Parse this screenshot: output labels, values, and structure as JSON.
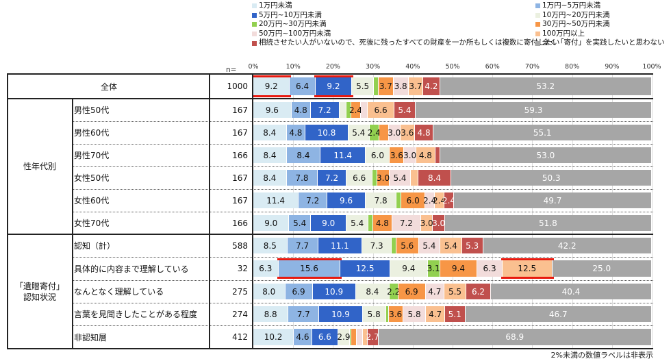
{
  "legend": [
    {
      "label": "1万円未満",
      "color": "#d9ebf3"
    },
    {
      "label": "1万円~5万円未満",
      "color": "#8eb4e3"
    },
    {
      "label": "5万円~10万円未満",
      "color": "#3164c8"
    },
    {
      "label": "10万円~20万円未満",
      "color": "#ebf0e0"
    },
    {
      "label": "20万円~30万円未満",
      "color": "#92d050"
    },
    {
      "label": "30万円~50万円未満",
      "color": "#f79646"
    },
    {
      "label": "50万円~100万円未満",
      "color": "#f2dcdb"
    },
    {
      "label": "100万円以上",
      "color": "#fac090"
    },
    {
      "label": "相続させたい人がいないので、死後に残ったすべての財産を一か所もしくは複数に寄付したい",
      "color": "#c0504d"
    },
    {
      "label": "全く「寄付」を実践したいと思わない",
      "color": "#a6a6a6"
    }
  ],
  "n_header": "n=",
  "footnote": "2%未満の数値ラベルは非表示",
  "chart_data": {
    "type": "bar",
    "orientation": "horizontal",
    "stacked": "100%",
    "title": "",
    "xlabel": "",
    "ylabel": "",
    "xlim": [
      0,
      100
    ],
    "x_ticks": [
      "0%",
      "10%",
      "20%",
      "30%",
      "40%",
      "50%",
      "60%",
      "70%",
      "80%",
      "90%",
      "100%"
    ],
    "grid": true,
    "legend_position": "top",
    "label_threshold_note": "2%未満の数値ラベルは非表示",
    "series_names": [
      "1万円未満",
      "1万円~5万円未満",
      "5万円~10万円未満",
      "10万円~20万円未満",
      "20万円~30万円未満",
      "30万円~50万円未満",
      "50万円~100万円未満",
      "100万円以上",
      "相続させたい人がいないので、死後に残ったすべての財産を一か所もしくは複数に寄付したい",
      "全く「寄付」を実践したいと思わない"
    ],
    "rows": [
      {
        "group": "",
        "label": "全体",
        "n": "1000",
        "values": [
          9.2,
          6.4,
          9.2,
          5.5,
          1.2,
          3.7,
          3.8,
          3.7,
          4.2,
          53.2
        ],
        "labels": [
          "9.2",
          "6.4",
          "9.2",
          "5.5",
          "",
          "3.7",
          "3.8",
          "3.7",
          "4.2",
          "53.2"
        ],
        "highlight": [
          0,
          2
        ]
      },
      {
        "group": "性年代別",
        "label": "男性50代",
        "n": "167",
        "values": [
          9.6,
          4.8,
          7.2,
          1.8,
          1.2,
          2.4,
          1.8,
          6.6,
          5.4,
          59.3
        ],
        "labels": [
          "9.6",
          "4.8",
          "7.2",
          "",
          "",
          "2.4",
          "",
          "6.6",
          "5.4",
          "59.3"
        ],
        "highlight": []
      },
      {
        "group": "性年代別",
        "label": "男性60代",
        "n": "167",
        "values": [
          8.4,
          4.8,
          10.8,
          5.4,
          2.4,
          2.4,
          3.0,
          3.6,
          4.8,
          55.1
        ],
        "labels": [
          "8.4",
          "4.8",
          "10.8",
          "5.4",
          "2.4",
          "",
          "3.0",
          "3.6",
          "4.8",
          "55.1"
        ],
        "highlight": []
      },
      {
        "group": "性年代別",
        "label": "男性70代",
        "n": "166",
        "values": [
          8.4,
          8.4,
          11.4,
          6.0,
          0.0,
          3.6,
          3.0,
          4.8,
          1.2,
          53.0
        ],
        "labels": [
          "8.4",
          "8.4",
          "11.4",
          "6.0",
          "",
          "3.6",
          "3.0",
          "4.8",
          "",
          "53.0"
        ],
        "highlight": []
      },
      {
        "group": "性年代別",
        "label": "女性50代",
        "n": "167",
        "values": [
          8.4,
          7.8,
          7.2,
          6.6,
          1.2,
          3.0,
          5.4,
          1.8,
          8.4,
          50.3
        ],
        "labels": [
          "8.4",
          "7.8",
          "7.2",
          "6.6",
          "",
          "3.0",
          "5.4",
          "",
          "8.4",
          "50.3"
        ],
        "highlight": []
      },
      {
        "group": "性年代別",
        "label": "女性60代",
        "n": "167",
        "values": [
          11.4,
          7.2,
          9.6,
          7.8,
          1.2,
          6.0,
          2.4,
          2.4,
          2.4,
          49.7
        ],
        "labels": [
          "11.4",
          "7.2",
          "9.6",
          "7.8",
          "",
          "6.0",
          "2.4",
          "2.4",
          "2.4",
          "49.7"
        ],
        "highlight": []
      },
      {
        "group": "性年代別",
        "label": "女性70代",
        "n": "166",
        "values": [
          9.0,
          5.4,
          9.0,
          5.4,
          1.2,
          4.8,
          7.2,
          3.0,
          3.0,
          51.8
        ],
        "labels": [
          "9.0",
          "5.4",
          "9.0",
          "5.4",
          "",
          "4.8",
          "7.2",
          "3.0",
          "3.0",
          "51.8"
        ],
        "highlight": []
      },
      {
        "group": "「遺贈寄付」認知状況",
        "label": "認知（計）",
        "n": "588",
        "values": [
          8.5,
          7.7,
          11.1,
          7.3,
          1.2,
          5.6,
          5.4,
          5.4,
          5.3,
          42.2
        ],
        "labels": [
          "8.5",
          "7.7",
          "11.1",
          "7.3",
          "",
          "5.6",
          "5.4",
          "5.4",
          "5.3",
          "42.2"
        ],
        "highlight": []
      },
      {
        "group": "「遺贈寄付」認知状況",
        "label": "具体的に内容まで理解している",
        "n": "32",
        "values": [
          6.3,
          15.6,
          12.5,
          9.4,
          3.1,
          9.4,
          6.3,
          12.5,
          0.0,
          25.0
        ],
        "labels": [
          "6.3",
          "15.6",
          "12.5",
          "9.4",
          "3.1",
          "9.4",
          "6.3",
          "12.5",
          "",
          "25.0"
        ],
        "highlight": [
          1,
          7
        ]
      },
      {
        "group": "「遺贈寄付」認知状況",
        "label": "なんとなく理解している",
        "n": "275",
        "values": [
          8.0,
          6.9,
          10.9,
          8.4,
          2.2,
          6.9,
          4.7,
          5.5,
          6.2,
          40.4
        ],
        "labels": [
          "8.0",
          "6.9",
          "10.9",
          "8.4",
          "2.2",
          "6.9",
          "4.7",
          "5.5",
          "6.2",
          "40.4"
        ],
        "highlight": []
      },
      {
        "group": "「遺贈寄付」認知状況",
        "label": "言葉を見聞きしたことがある程度",
        "n": "274",
        "values": [
          8.8,
          7.7,
          10.9,
          5.8,
          0.7,
          3.6,
          5.8,
          4.7,
          5.1,
          46.7
        ],
        "labels": [
          "8.8",
          "7.7",
          "10.9",
          "5.8",
          "",
          "3.6",
          "5.8",
          "4.7",
          "5.1",
          "46.7"
        ],
        "highlight": []
      },
      {
        "group": "「遺贈寄付」認知状況",
        "label": "非認知層",
        "n": "412",
        "values": [
          10.2,
          4.6,
          6.6,
          2.9,
          0.3,
          1.5,
          1.5,
          1.2,
          2.7,
          68.9
        ],
        "labels": [
          "10.2",
          "4.6",
          "6.6",
          "2.9",
          "",
          "",
          "",
          "",
          "2.7",
          "68.9"
        ],
        "highlight": []
      }
    ],
    "groups": [
      {
        "label": "性年代別",
        "rows": [
          1,
          6
        ]
      },
      {
        "label": "「遺贈寄付」\n認知状況",
        "rows": [
          7,
          11
        ]
      }
    ]
  }
}
